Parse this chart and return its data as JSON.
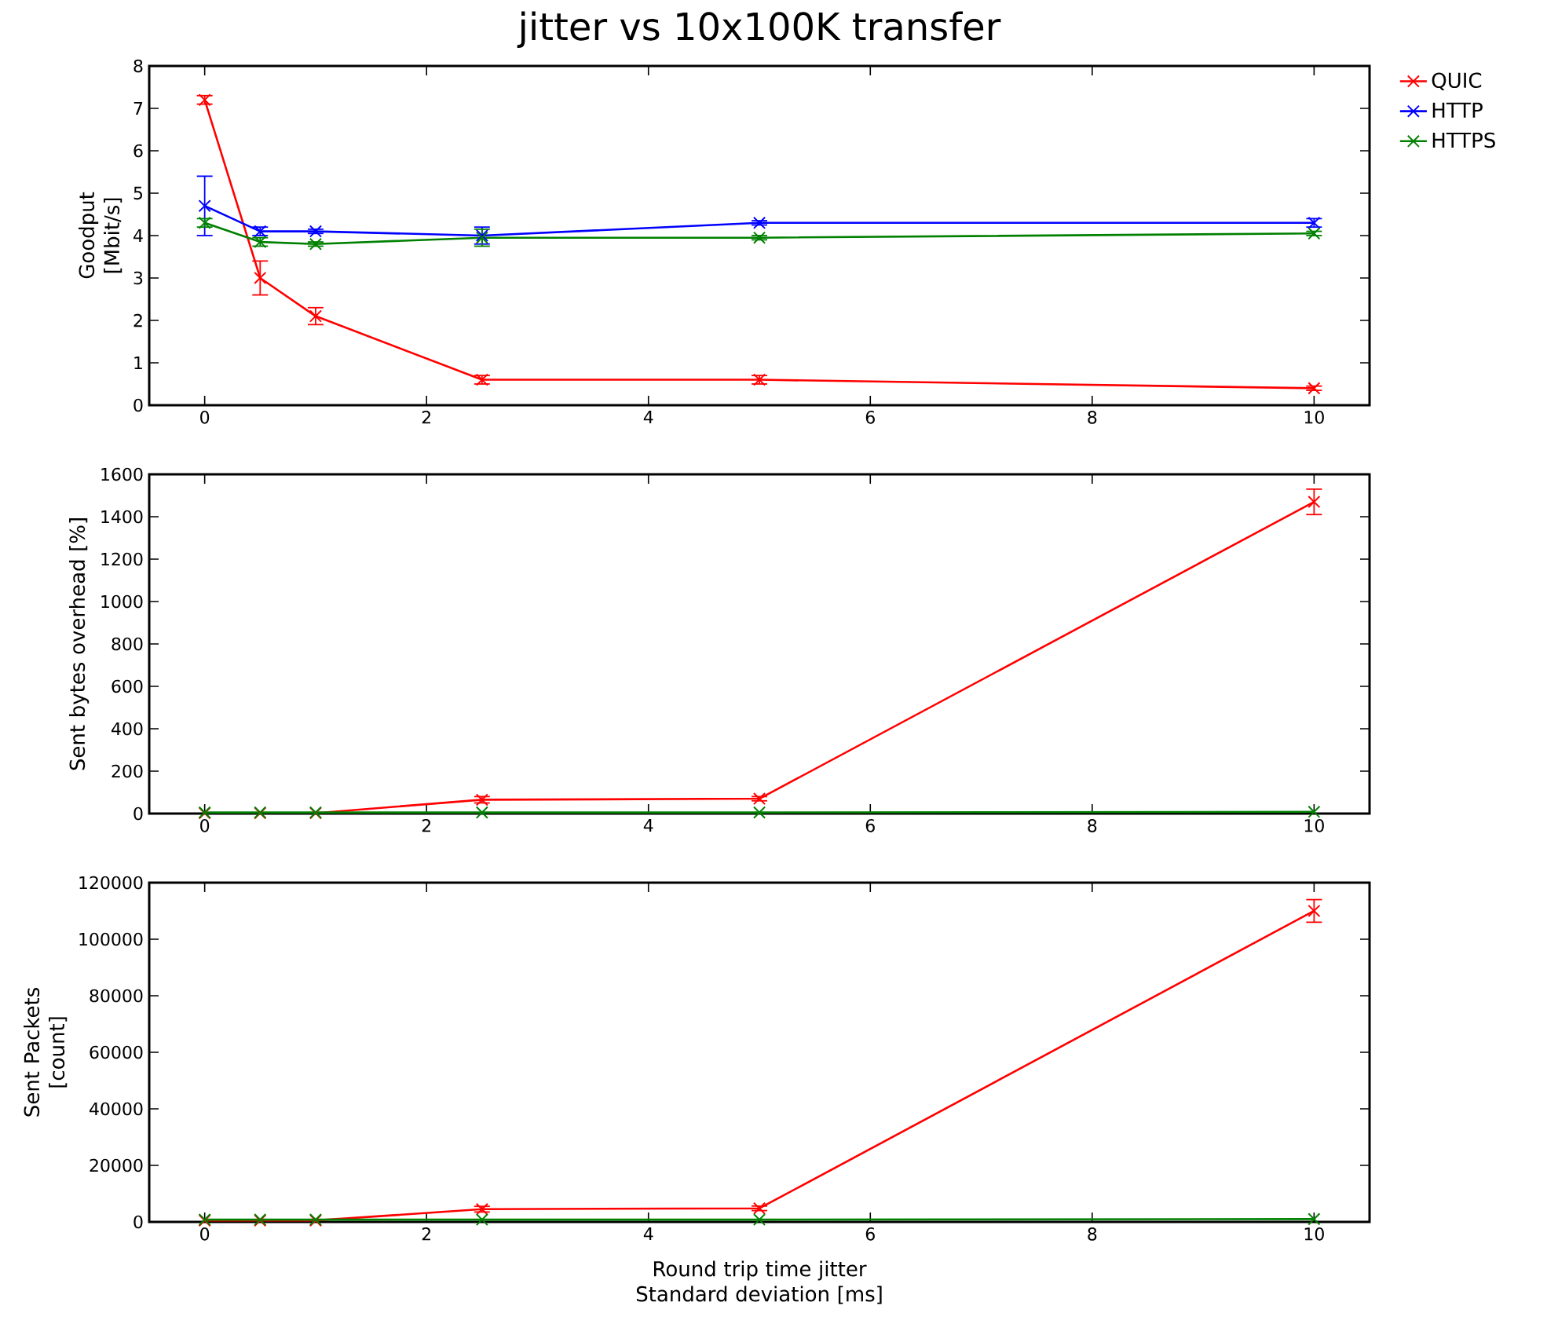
{
  "chart_data": [
    {
      "type": "line",
      "title": "jitter vs 10x100K transfer",
      "ylabel": "Goodput [Mbit/s]",
      "x": [
        0,
        0.5,
        1,
        2.5,
        5,
        10
      ],
      "xlim": [
        -0.5,
        10.5
      ],
      "xticks": [
        0,
        2,
        4,
        6,
        8,
        10
      ],
      "ylim": [
        0,
        8
      ],
      "yticks": [
        0,
        1,
        2,
        3,
        4,
        5,
        6,
        7,
        8
      ],
      "marker": "cross",
      "line_style": "solid",
      "legend": "top right outside",
      "series": [
        {
          "name": "QUIC",
          "color": "#ff0000",
          "values": [
            7.2,
            3.0,
            2.1,
            0.6,
            0.6,
            0.4
          ],
          "errors": [
            0.1,
            0.4,
            0.2,
            0.1,
            0.1,
            0.05
          ]
        },
        {
          "name": "HTTP",
          "color": "#0000ff",
          "values": [
            4.7,
            4.1,
            4.1,
            4.0,
            4.3,
            4.3
          ],
          "errors": [
            0.7,
            0.1,
            0.05,
            0.2,
            0.05,
            0.1
          ]
        },
        {
          "name": "HTTPS",
          "color": "#008000",
          "values": [
            4.3,
            3.85,
            3.8,
            3.95,
            3.95,
            4.05
          ],
          "errors": [
            0.1,
            0.1,
            0.05,
            0.2,
            0.05,
            0.05
          ]
        }
      ]
    },
    {
      "type": "line",
      "ylabel": "Sent bytes overhead [%]",
      "x": [
        0,
        0.5,
        1,
        2.5,
        5,
        10
      ],
      "xlim": [
        -0.5,
        10.5
      ],
      "xticks": [
        0,
        2,
        4,
        6,
        8,
        10
      ],
      "ylim": [
        0,
        1600
      ],
      "yticks": [
        0,
        200,
        400,
        600,
        800,
        1000,
        1200,
        1400,
        1600
      ],
      "marker": "cross",
      "line_style": "solid",
      "series": [
        {
          "color": "#ff0000",
          "values": [
            2,
            2,
            2,
            65,
            70,
            1470
          ],
          "errors": [
            null,
            null,
            null,
            15,
            10,
            60
          ]
        },
        {
          "color": "#0000ff",
          "values": [
            null,
            null,
            null,
            null,
            null,
            null
          ],
          "errors": [
            null,
            null,
            null,
            null,
            null,
            null
          ]
        },
        {
          "color": "#008000",
          "values": [
            5,
            5,
            5,
            5,
            5,
            8
          ],
          "errors": [
            null,
            null,
            null,
            null,
            null,
            null
          ]
        }
      ]
    },
    {
      "type": "line",
      "ylabel": "Sent Packets [count]",
      "xlabel": "Round trip time jitter Standard deviation [ms]",
      "x": [
        0,
        0.5,
        1,
        2.5,
        5,
        10
      ],
      "xlim": [
        -0.5,
        10.5
      ],
      "xticks": [
        0,
        2,
        4,
        6,
        8,
        10
      ],
      "ylim": [
        0,
        120000
      ],
      "yticks": [
        0,
        20000,
        40000,
        60000,
        80000,
        100000,
        120000
      ],
      "marker": "cross",
      "line_style": "solid",
      "series": [
        {
          "color": "#ff0000",
          "values": [
            500,
            500,
            500,
            4500,
            4800,
            110000
          ],
          "errors": [
            null,
            null,
            null,
            1000,
            800,
            4000
          ]
        },
        {
          "color": "#0000ff",
          "values": [
            null,
            null,
            null,
            null,
            null,
            null
          ],
          "errors": [
            null,
            null,
            null,
            null,
            null,
            null
          ]
        },
        {
          "color": "#008000",
          "values": [
            800,
            800,
            800,
            800,
            800,
            1000
          ],
          "errors": [
            null,
            null,
            null,
            null,
            null,
            null
          ]
        }
      ]
    }
  ]
}
